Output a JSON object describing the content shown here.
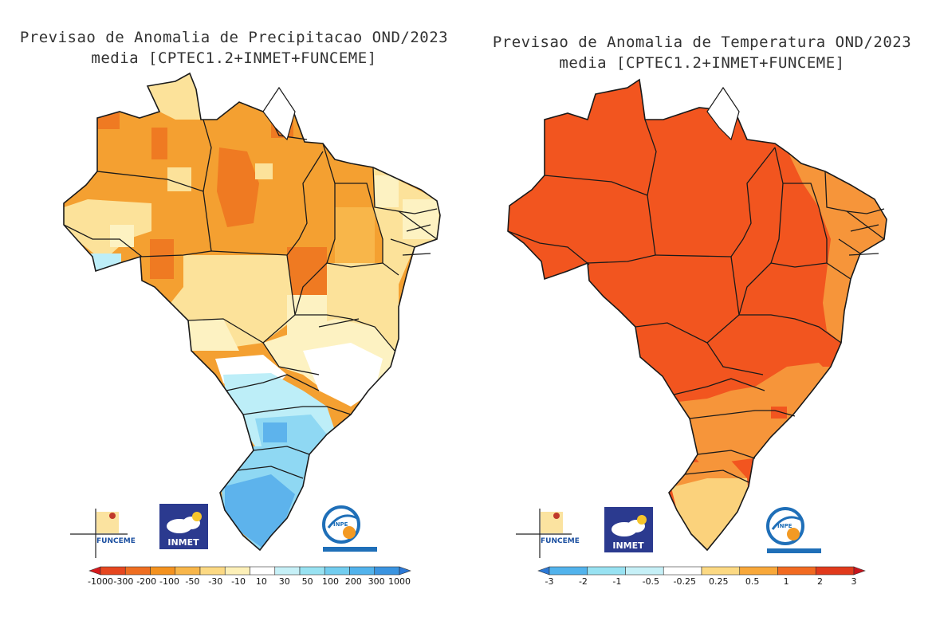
{
  "panels": [
    {
      "title_line1": "Previsao de Anomalia de Precipitacao OND/2023",
      "title_line2": "media [CPTEC1.2+INMET+FUNCEME]",
      "colorbar_labels": [
        "-1000",
        "-300",
        "-200",
        "-100",
        "-50",
        "-30",
        "-10",
        "10",
        "30",
        "50",
        "100",
        "200",
        "300",
        "1000"
      ],
      "colorbar_colors": [
        "#d7191c",
        "#e6471f",
        "#ef6e21",
        "#f4921f",
        "#f8b64a",
        "#fcd983",
        "#fdf0b8",
        "#ffffff",
        "#c6f0f7",
        "#98e2f2",
        "#72cdef",
        "#52b3ec",
        "#3a94e0",
        "#2b78d6"
      ]
    },
    {
      "title_line1": "Previsao de Anomalia de Temperatura OND/2023",
      "title_line2": "media [CPTEC1.2+INMET+FUNCEME]",
      "colorbar_labels": [
        "-3",
        "-2",
        "-1",
        "-0.5",
        "-0.25",
        "0.25",
        "0.5",
        "1",
        "2",
        "3"
      ],
      "colorbar_colors": [
        "#2b78d6",
        "#52b3ec",
        "#98e2f2",
        "#c6f0f7",
        "#ffffff",
        "#fcd983",
        "#f8a83a",
        "#f26a21",
        "#e13a1c",
        "#c8141c"
      ]
    }
  ],
  "logos": {
    "funceme": "FUNCEME",
    "inmet": "INMET",
    "inpe": "INPE"
  },
  "colors": {
    "outline": "#1a1a1a",
    "precip_main": "#f4a031",
    "precip_dark": "#ef7a22",
    "precip_light": "#fce29a",
    "precip_pale": "#fdf2c2",
    "precip_blue1": "#bdeef8",
    "precip_blue2": "#8fd8f3",
    "precip_blue3": "#5db3ec",
    "temp_main": "#f2551f",
    "temp_mid": "#f6953a",
    "temp_light": "#fbd27c"
  }
}
